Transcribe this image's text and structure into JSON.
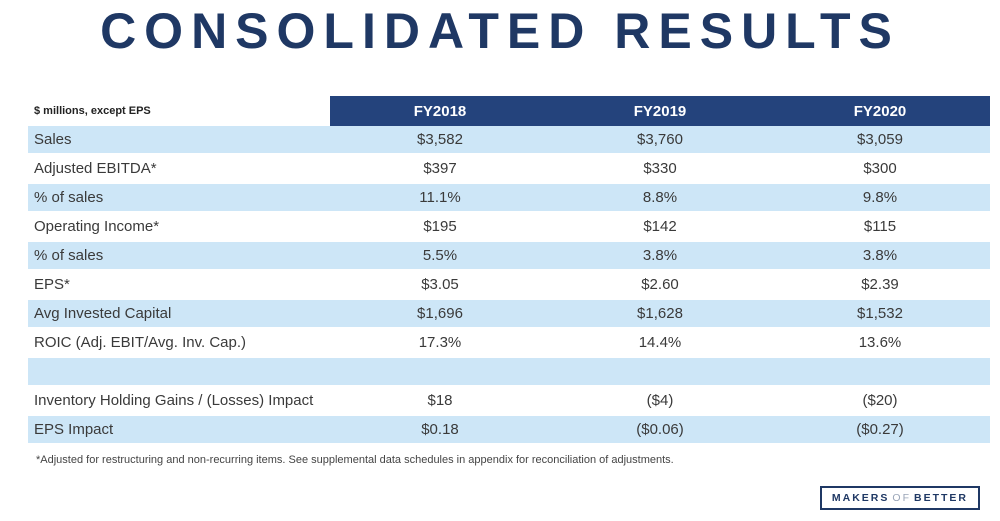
{
  "title": "CONSOLIDATED RESULTS",
  "table": {
    "unit_label": "$ millions, except EPS",
    "columns": [
      "FY2018",
      "FY2019",
      "FY2020"
    ],
    "rows": [
      {
        "label": "Sales",
        "values": [
          "$3,582",
          "$3,760",
          "$3,059"
        ]
      },
      {
        "label": "Adjusted EBITDA*",
        "values": [
          "$397",
          "$330",
          "$300"
        ]
      },
      {
        "label": "% of sales",
        "values": [
          "11.1%",
          "8.8%",
          "9.8%"
        ]
      },
      {
        "label": "Operating Income*",
        "values": [
          "$195",
          "$142",
          "$115"
        ]
      },
      {
        "label": "% of sales",
        "values": [
          "5.5%",
          "3.8%",
          "3.8%"
        ]
      },
      {
        "label": "EPS*",
        "values": [
          "$3.05",
          "$2.60",
          "$2.39"
        ]
      },
      {
        "label": "Avg Invested Capital",
        "values": [
          "$1,696",
          "$1,628",
          "$1,532"
        ]
      },
      {
        "label": "ROIC (Adj. EBIT/Avg. Inv. Cap.)",
        "values": [
          "17.3%",
          "14.4%",
          "13.6%"
        ]
      },
      {
        "label": "",
        "values": [
          "",
          "",
          ""
        ]
      },
      {
        "label": "Inventory Holding Gains / (Losses) Impact",
        "values": [
          "$18",
          "($4)",
          "($20)"
        ]
      },
      {
        "label": "EPS Impact",
        "values": [
          "$0.18",
          "($0.06)",
          "($0.27)"
        ]
      }
    ]
  },
  "footnote": "*Adjusted for restructuring and non-recurring items.  See supplemental data schedules in appendix for reconciliation of adjustments.",
  "logo": {
    "makers": "MAKERS",
    "of": "OF",
    "better": "BETTER"
  },
  "colors": {
    "title_navy": "#1F3864",
    "header_bg": "#24437C",
    "row_blue": "#CDE6F7",
    "text": "#3a3a3a"
  }
}
